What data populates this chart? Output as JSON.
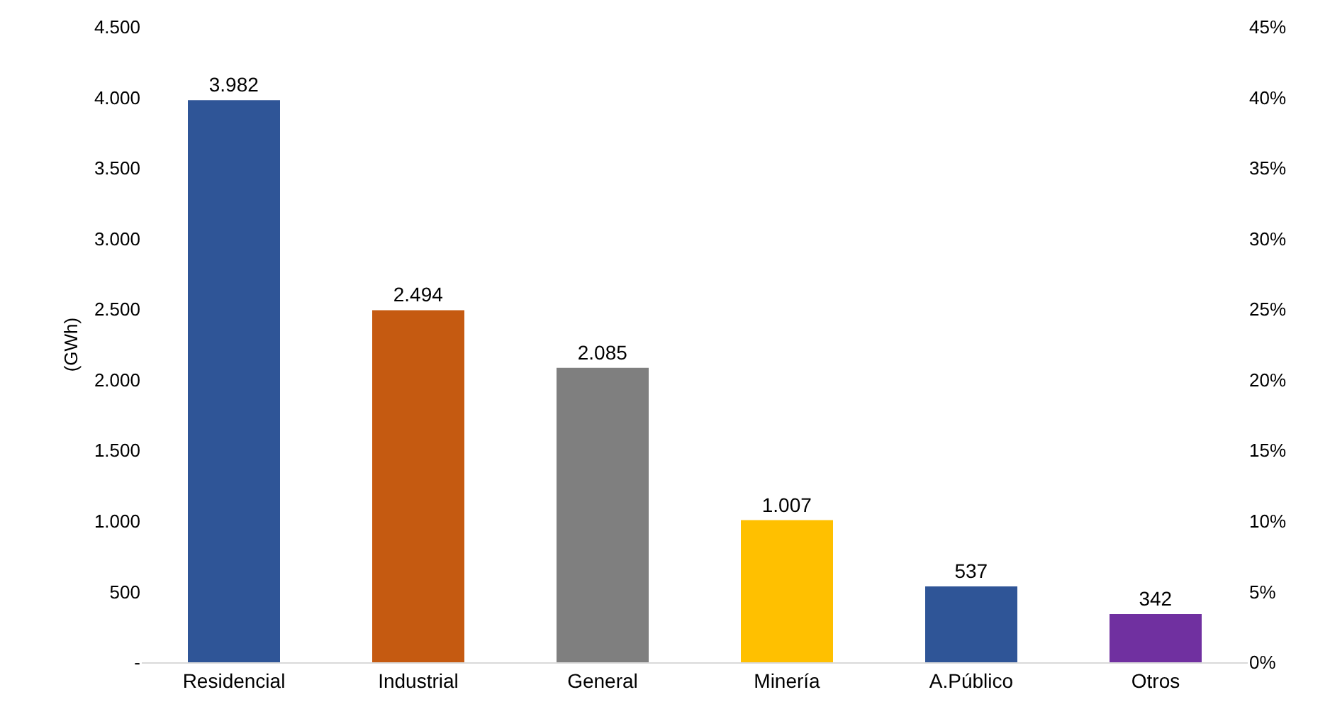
{
  "chart_data": {
    "type": "bar",
    "ylabel": "(GWh)",
    "categories": [
      "Residencial",
      "Industrial",
      "General",
      "Minería",
      "A.Público",
      "Otros"
    ],
    "values": [
      3982,
      2494,
      2085,
      1007,
      537,
      342
    ],
    "colors": [
      "#2f5597",
      "#c55a11",
      "#7f7f7f",
      "#ffc000",
      "#2f5597",
      "#7030a0"
    ],
    "value_labels": [
      "3.982",
      "2.494",
      "2.085",
      "1.007",
      "537",
      "342"
    ],
    "ylim": [
      0,
      4500
    ],
    "yticks": [
      {
        "value": 0,
        "label": "-"
      },
      {
        "value": 500,
        "label": "500"
      },
      {
        "value": 1000,
        "label": "1.000"
      },
      {
        "value": 1500,
        "label": "1.500"
      },
      {
        "value": 2000,
        "label": "2.000"
      },
      {
        "value": 2500,
        "label": "2.500"
      },
      {
        "value": 3000,
        "label": "3.000"
      },
      {
        "value": 3500,
        "label": "3.500"
      },
      {
        "value": 4000,
        "label": "4.000"
      },
      {
        "value": 4500,
        "label": "4.500"
      }
    ],
    "y2lim": [
      0,
      45
    ],
    "y2ticks": [
      {
        "value": 0,
        "label": "0%"
      },
      {
        "value": 5,
        "label": "5%"
      },
      {
        "value": 10,
        "label": "10%"
      },
      {
        "value": 15,
        "label": "15%"
      },
      {
        "value": 20,
        "label": "20%"
      },
      {
        "value": 25,
        "label": "25%"
      },
      {
        "value": 30,
        "label": "30%"
      },
      {
        "value": 35,
        "label": "35%"
      },
      {
        "value": 40,
        "label": "40%"
      },
      {
        "value": 45,
        "label": "45%"
      }
    ],
    "grid": false,
    "legend": false
  }
}
